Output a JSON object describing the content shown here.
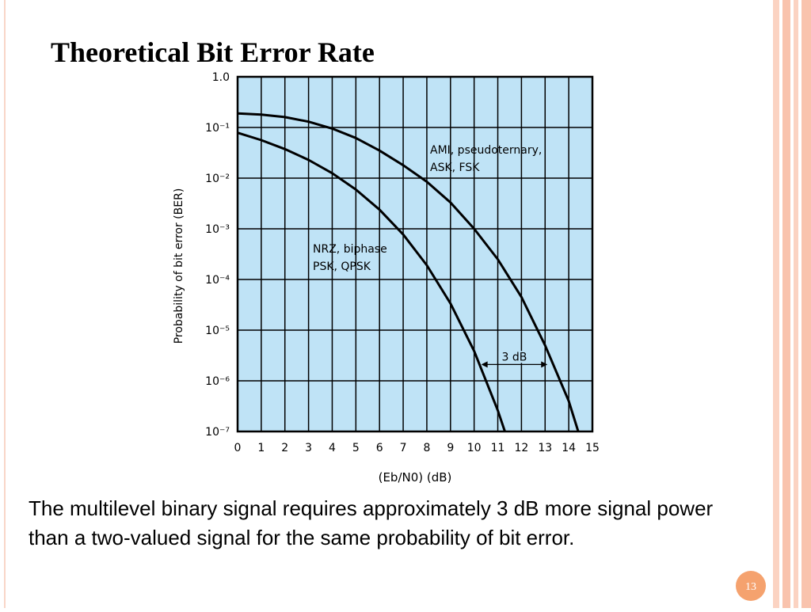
{
  "title": "Theoretical Bit Error Rate",
  "body": "The multilevel binary signal requires approximately 3 dB more signal power than a two-valued signal for the same probability of bit error.",
  "page_number": "13",
  "chart_data": {
    "type": "line",
    "x_label": "(Eb/N0) (dB)",
    "y_label": "Probability of bit error (BER)",
    "xlim": [
      0,
      15
    ],
    "xticks": [
      0,
      1,
      2,
      3,
      4,
      5,
      6,
      7,
      8,
      9,
      10,
      11,
      12,
      13,
      14,
      15
    ],
    "ylim": [
      1e-07,
      1
    ],
    "y_scale": "log",
    "yticks": [
      {
        "value": 1,
        "label": "1.0"
      },
      {
        "value": 0.1,
        "label": "10⁻¹"
      },
      {
        "value": 0.01,
        "label": "10⁻²"
      },
      {
        "value": 0.001,
        "label": "10⁻³"
      },
      {
        "value": 0.0001,
        "label": "10⁻⁴"
      },
      {
        "value": 1e-05,
        "label": "10⁻⁵"
      },
      {
        "value": 1e-06,
        "label": "10⁻⁶"
      },
      {
        "value": 1e-07,
        "label": "10⁻⁷"
      }
    ],
    "grid": true,
    "background": "#bfe3f6",
    "series": [
      {
        "labels": [
          "AMI, pseudoternary,",
          "ASK, FSK"
        ],
        "color": "#000000",
        "x": [
          0,
          1,
          2,
          3,
          4,
          5,
          6,
          7,
          8,
          9,
          10,
          11,
          12,
          13,
          14,
          14.4
        ],
        "values": [
          0.19,
          0.18,
          0.16,
          0.13,
          0.095,
          0.062,
          0.035,
          0.018,
          0.0085,
          0.0033,
          0.001,
          0.00025,
          4.5e-05,
          5e-06,
          4e-07,
          1e-07
        ]
      },
      {
        "labels": [
          "NRZ, biphase",
          "PSK, QPSK"
        ],
        "color": "#000000",
        "x": [
          0,
          1,
          2,
          3,
          4,
          5,
          6,
          7,
          8,
          9,
          10,
          11,
          11.3
        ],
        "values": [
          0.0786,
          0.0563,
          0.0375,
          0.0229,
          0.0125,
          0.00595,
          0.00239,
          0.000773,
          0.000191,
          3.36e-05,
          3.87e-06,
          2.61e-07,
          1e-07
        ]
      }
    ],
    "annotations": [
      {
        "text": "3 dB",
        "x": [
          10.3,
          13.1
        ],
        "y": 2.1e-06
      }
    ]
  }
}
